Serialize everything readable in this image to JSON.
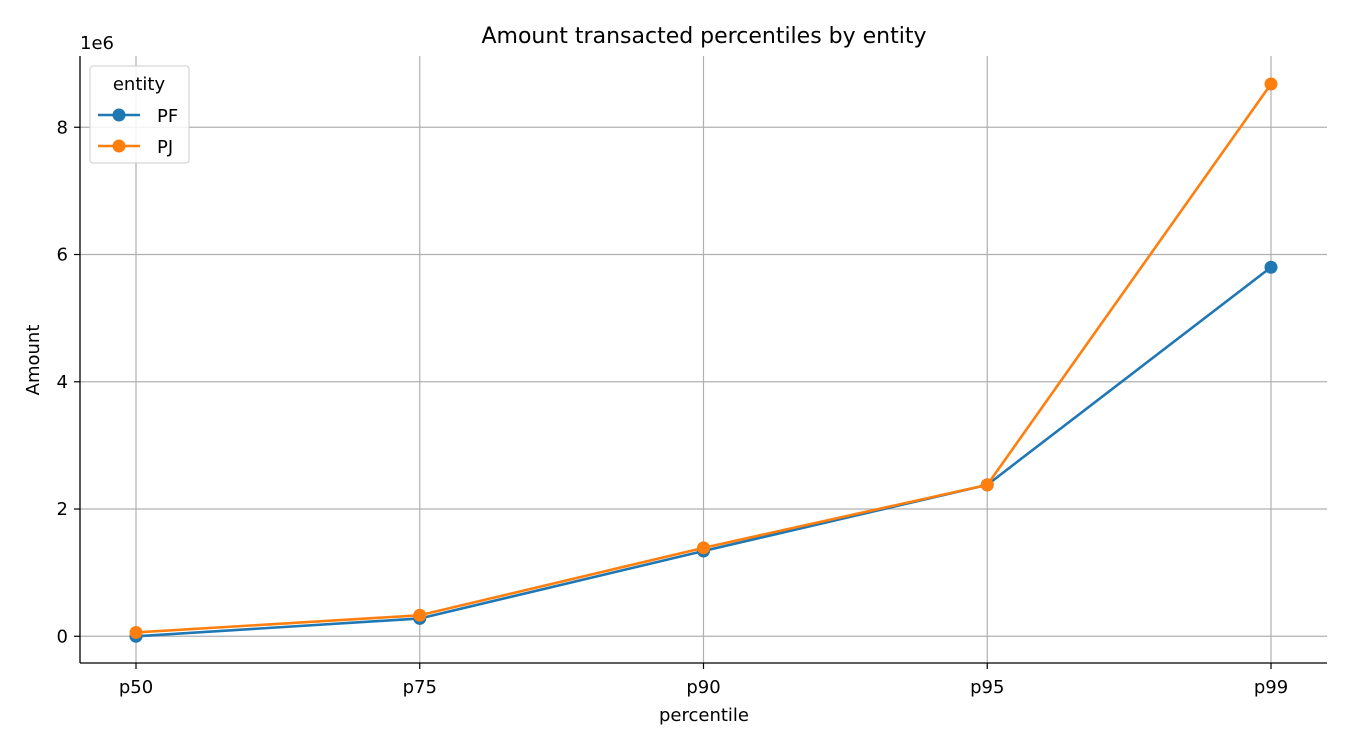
{
  "chart_data": {
    "type": "line",
    "title": "Amount transacted percentiles by entity",
    "xlabel": "percentile",
    "ylabel": "Amount",
    "y_offset_label": "1e6",
    "categories": [
      "p50",
      "p75",
      "p90",
      "p95",
      "p99"
    ],
    "ylim": [
      -0.42,
      9.12
    ],
    "yticks": [
      0,
      2,
      4,
      6,
      8
    ],
    "ytick_labels": [
      "0",
      "2",
      "4",
      "6",
      "8"
    ],
    "grid": true,
    "legend": {
      "title": "entity",
      "position": "top-left"
    },
    "series": [
      {
        "name": "PF",
        "color": "#1f77b4",
        "values": [
          0.0,
          0.28,
          1.34,
          2.38,
          5.8
        ]
      },
      {
        "name": "PJ",
        "color": "#ff7f0e",
        "values": [
          0.06,
          0.33,
          1.39,
          2.38,
          8.68
        ]
      }
    ]
  }
}
